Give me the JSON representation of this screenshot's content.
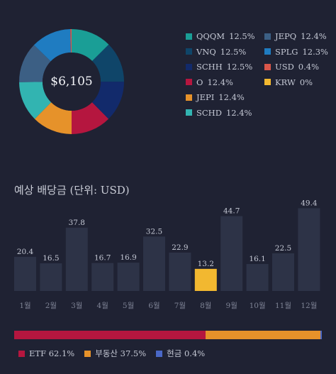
{
  "portfolio": {
    "total": "$6,105",
    "holdings": [
      {
        "ticker": "QQQM",
        "pct": "12.5%",
        "value": 12.5,
        "color": "#1a9e96"
      },
      {
        "ticker": "VNQ",
        "pct": "12.5%",
        "value": 12.5,
        "color": "#0f4569"
      },
      {
        "ticker": "SCHH",
        "pct": "12.5%",
        "value": 12.5,
        "color": "#122a6b"
      },
      {
        "ticker": "O",
        "pct": "12.4%",
        "value": 12.4,
        "color": "#b5163f"
      },
      {
        "ticker": "JEPI",
        "pct": "12.4%",
        "value": 12.4,
        "color": "#e6922a"
      },
      {
        "ticker": "SCHD",
        "pct": "12.4%",
        "value": 12.4,
        "color": "#32b4b1"
      },
      {
        "ticker": "JEPQ",
        "pct": "12.4%",
        "value": 12.4,
        "color": "#3c5f84"
      },
      {
        "ticker": "SPLG",
        "pct": "12.3%",
        "value": 12.3,
        "color": "#1f7cc1"
      },
      {
        "ticker": "USD",
        "pct": "0.4%",
        "value": 0.4,
        "color": "#d9564a"
      },
      {
        "ticker": "KRW",
        "pct": "0%",
        "value": 0.0,
        "color": "#f2b830"
      }
    ]
  },
  "dividends": {
    "title": "예상 배당금 (단위: USD)",
    "chart_data": {
      "type": "bar",
      "categories": [
        "1월",
        "2월",
        "3월",
        "4월",
        "5월",
        "6월",
        "7월",
        "8월",
        "9월",
        "10월",
        "11월",
        "12월"
      ],
      "values": [
        20.4,
        16.5,
        37.8,
        16.7,
        16.9,
        32.5,
        22.9,
        13.2,
        44.7,
        16.1,
        22.5,
        49.4
      ],
      "value_labels": [
        "20.4",
        "16.5",
        "37.8",
        "16.7",
        "16.9",
        "32.5",
        "22.9",
        "13.2",
        "44.7",
        "16.1",
        "22.5",
        "49.4"
      ],
      "highlight_index": 7,
      "bar_color": "#2d3347",
      "highlight_color": "#f2b830"
    }
  },
  "allocation": {
    "segments": [
      {
        "label": "ETF",
        "pct": "62.1%",
        "value": 62.1,
        "color": "#b5163f"
      },
      {
        "label": "부동산",
        "pct": "37.5%",
        "value": 37.5,
        "color": "#e6922a"
      },
      {
        "label": "현금",
        "pct": "0.4%",
        "value": 0.4,
        "color": "#4a68c7"
      }
    ]
  }
}
